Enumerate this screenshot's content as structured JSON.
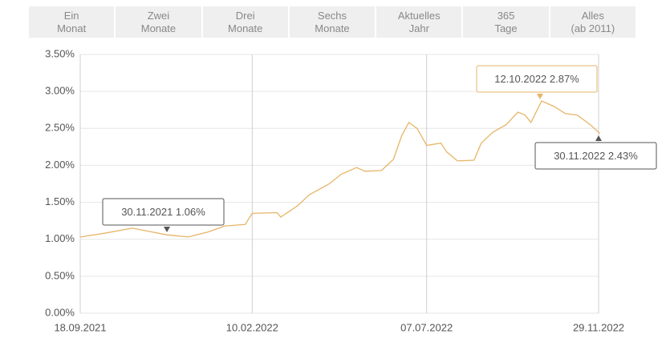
{
  "tabs": [
    {
      "lines": [
        "Ein",
        "Monat"
      ]
    },
    {
      "lines": [
        "Zwei",
        "Monate"
      ]
    },
    {
      "lines": [
        "Drei",
        "Monate"
      ]
    },
    {
      "lines": [
        "Sechs",
        "Monate"
      ]
    },
    {
      "lines": [
        "Aktuelles",
        "Jahr"
      ]
    },
    {
      "lines": [
        "365",
        "Tage"
      ]
    },
    {
      "lines": [
        "Alles",
        "(ab 2011)"
      ]
    }
  ],
  "chart_data": {
    "type": "line",
    "x": [
      "18.09.2021",
      "08.10.2021",
      "01.11.2021",
      "14.11.2021",
      "30.11.2021",
      "18.12.2021",
      "04.01.2022",
      "18.01.2022",
      "04.02.2022",
      "10.02.2022",
      "03.03.2022",
      "06.03.2022",
      "20.03.2022",
      "30.03.2022",
      "16.04.2022",
      "26.04.2022",
      "09.05.2022",
      "16.05.2022",
      "30.05.2022",
      "09.06.2022",
      "16.06.2022",
      "22.06.2022",
      "29.06.2022",
      "07.07.2022",
      "19.07.2022",
      "24.07.2022",
      "02.08.2022",
      "16.08.2022",
      "22.08.2022",
      "01.09.2022",
      "12.09.2022",
      "22.09.2022",
      "28.09.2022",
      "03.10.2022",
      "12.10.2022",
      "22.10.2022",
      "01.11.2022",
      "11.11.2022",
      "22.11.2022",
      "30.11.2022"
    ],
    "series": [
      {
        "color": "#e6b567",
        "values": [
          1.03,
          1.08,
          1.15,
          1.11,
          1.06,
          1.03,
          1.1,
          1.18,
          1.2,
          1.35,
          1.36,
          1.3,
          1.45,
          1.6,
          1.75,
          1.88,
          1.97,
          1.92,
          1.93,
          2.08,
          2.4,
          2.58,
          2.5,
          2.27,
          2.3,
          2.18,
          2.06,
          2.07,
          2.3,
          2.45,
          2.55,
          2.72,
          2.68,
          2.58,
          2.87,
          2.8,
          2.7,
          2.68,
          2.55,
          2.43
        ]
      }
    ],
    "xlim": [
      "18.09.2021",
      "29.11.2022"
    ],
    "xticks": [
      "18.09.2021",
      "10.02.2022",
      "07.07.2022",
      "29.11.2022"
    ],
    "ylim": [
      0,
      3.5
    ],
    "yticks": [
      {
        "value": 0,
        "label": "0.00%"
      },
      {
        "value": 0.5,
        "label": "0.50%"
      },
      {
        "value": 1,
        "label": "1.00%"
      },
      {
        "value": 1.5,
        "label": "1.50%"
      },
      {
        "value": 2,
        "label": "2.00%"
      },
      {
        "value": 2.5,
        "label": "2.50%"
      },
      {
        "value": 3,
        "label": "3.00%"
      },
      {
        "value": 3.5,
        "label": "3.50%"
      }
    ],
    "grid": true,
    "annotations": [
      {
        "text": "30.11.2021 1.06%"
      },
      {
        "text": "12.10.2022 2.87%"
      },
      {
        "text": "30.11.2022 2.43%"
      }
    ]
  }
}
